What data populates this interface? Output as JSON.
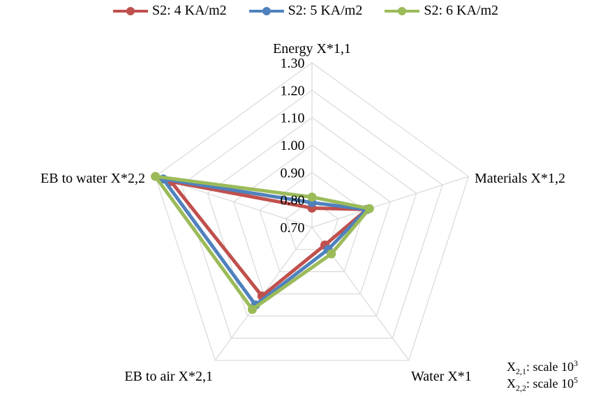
{
  "chart_data": {
    "type": "radar",
    "title": "",
    "axes": [
      "Energy X*1,1",
      "Materials X*1,2",
      "Water X*1",
      "EB to air X*2,1",
      "EB to water X*2,2"
    ],
    "radial_ticks": [
      "0.70",
      "0.80",
      "0.90",
      "1.00",
      "1.10",
      "1.20",
      "1.30"
    ],
    "rmin": 0.7,
    "rmax": 1.3,
    "grid": true,
    "legend_position": "top-center",
    "series": [
      {
        "name": "S2: 4 KA/m2",
        "color": "#C0504D",
        "values": [
          0.77,
          0.91,
          0.78,
          1.01,
          1.24
        ]
      },
      {
        "name": "S2: 5 KA/m2",
        "color": "#4F81BD",
        "values": [
          0.79,
          0.91,
          0.8,
          1.05,
          1.27
        ]
      },
      {
        "name": "S2: 6 KA/m2",
        "color": "#9BBB59",
        "values": [
          0.81,
          0.92,
          0.82,
          1.07,
          1.3
        ]
      }
    ],
    "scale_notes": [
      {
        "base": "X",
        "sub": "2,1",
        "text": ": scale 10",
        "sup": "3"
      },
      {
        "base": "X",
        "sub": "2,2",
        "text": ": scale 10",
        "sup": "5"
      }
    ]
  }
}
